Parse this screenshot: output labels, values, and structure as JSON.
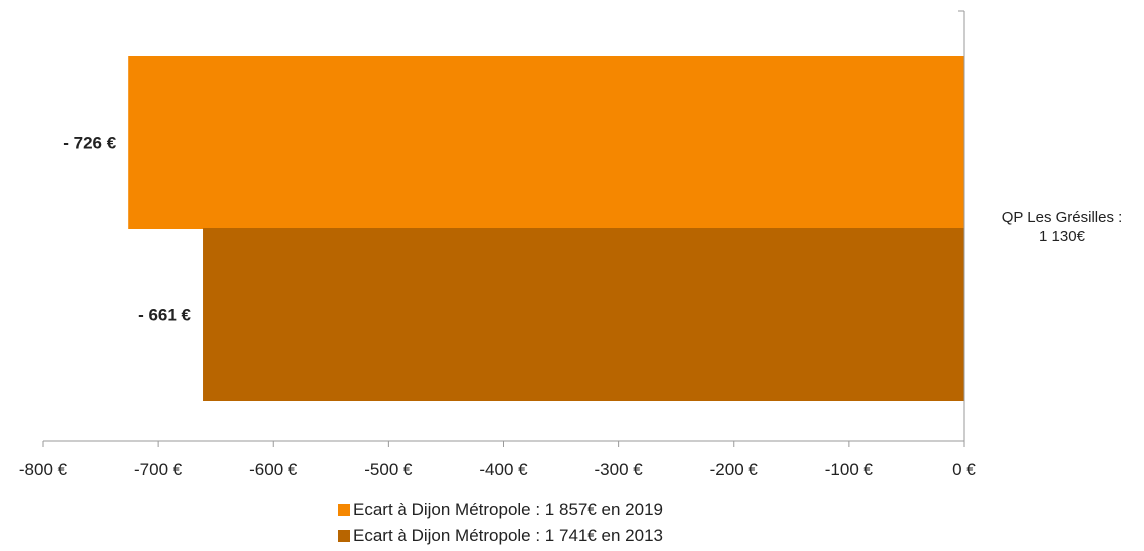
{
  "chart_data": {
    "type": "bar",
    "orientation": "horizontal",
    "category_label": [
      "QP Les Grésilles :",
      "1 130€"
    ],
    "series": [
      {
        "name": "Ecart à Dijon Métropole : 1 857€ en 2019",
        "value": -726,
        "label": "- 726 €",
        "color": "#F58700"
      },
      {
        "name": "Ecart à Dijon Métropole : 1 741€ en 2013",
        "value": -661,
        "label": "- 661 €",
        "color": "#B86500"
      }
    ],
    "xlim": [
      -800,
      0
    ],
    "x_ticks": [
      -800,
      -700,
      -600,
      -500,
      -400,
      -300,
      -200,
      -100,
      0
    ],
    "x_tick_labels": [
      "-800 €",
      "-700 €",
      "-600 €",
      "-500 €",
      "-400 €",
      "-300 €",
      "-200 €",
      "-100 €",
      "0 €"
    ],
    "legend_position": "bottom",
    "grid": false
  }
}
